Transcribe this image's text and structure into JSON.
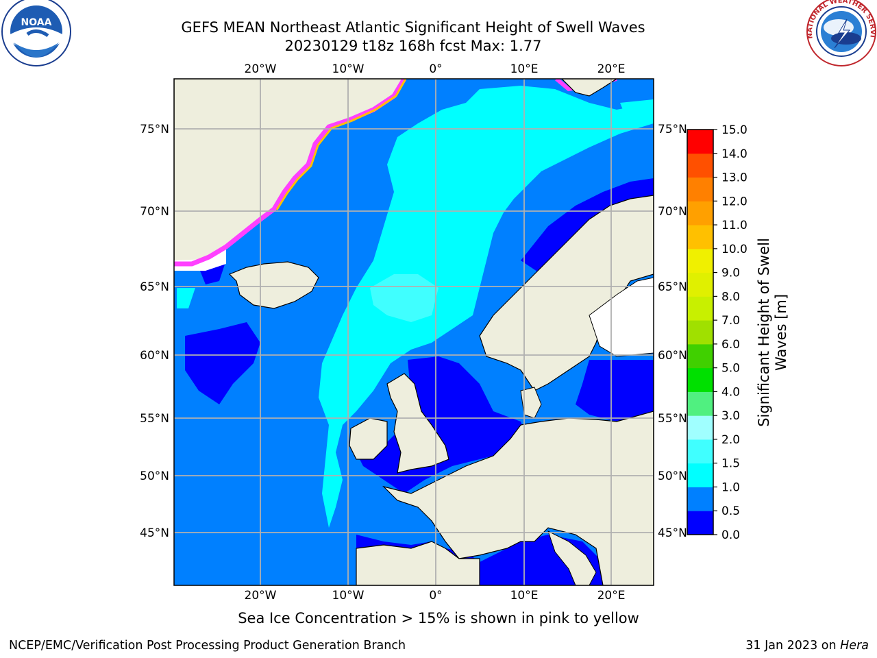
{
  "title": {
    "line1": "GEFS MEAN Northeast Atlantic Significant Height of Swell Waves",
    "line2": "20230129 t18z 168h fcst   Max: 1.77"
  },
  "axes": {
    "top_lon_ticks": [
      "20°W",
      "10°W",
      "0°",
      "10°E",
      "20°E"
    ],
    "bottom_lon_ticks": [
      "20°W",
      "10°W",
      "0°",
      "10°E",
      "20°E"
    ],
    "left_lat_ticks": [
      "75°N",
      "70°N",
      "65°N",
      "60°N",
      "55°N",
      "50°N",
      "45°N"
    ],
    "right_lat_ticks": [
      "75°N",
      "70°N",
      "65°N",
      "60°N",
      "55°N",
      "50°N",
      "45°N"
    ]
  },
  "colorbar": {
    "label_line1": "Significant Height of Swell",
    "label_line2": "Waves [m]",
    "ticks": [
      "15.0",
      "14.0",
      "13.0",
      "12.0",
      "11.0",
      "10.0",
      "9.0",
      "8.0",
      "7.0",
      "6.0",
      "5.0",
      "4.0",
      "3.0",
      "2.0",
      "1.5",
      "1.0",
      "0.5",
      "0.0"
    ],
    "bands": [
      {
        "range": "0.0-0.5",
        "color": "#0000ff"
      },
      {
        "range": "0.5-1.0",
        "color": "#0080ff"
      },
      {
        "range": "1.0-1.5",
        "color": "#00ffff"
      },
      {
        "range": "1.5-2.0",
        "color": "#40ffff"
      },
      {
        "range": "2.0-3.0",
        "color": "#a0ffff"
      },
      {
        "range": "3.0-4.0",
        "color": "#50f080"
      },
      {
        "range": "4.0-5.0",
        "color": "#00e000"
      },
      {
        "range": "5.0-6.0",
        "color": "#40d000"
      },
      {
        "range": "6.0-7.0",
        "color": "#a0e000"
      },
      {
        "range": "7.0-8.0",
        "color": "#c8f000"
      },
      {
        "range": "8.0-9.0",
        "color": "#e0f000"
      },
      {
        "range": "9.0-10.0",
        "color": "#f0f000"
      },
      {
        "range": "10.0-11.0",
        "color": "#ffc000"
      },
      {
        "range": "11.0-12.0",
        "color": "#ffa000"
      },
      {
        "range": "12.0-13.0",
        "color": "#ff8000"
      },
      {
        "range": "13.0-14.0",
        "color": "#ff5000"
      },
      {
        "range": "14.0-15.0",
        "color": "#ff0000"
      }
    ]
  },
  "colors": {
    "land": "#eeeedd",
    "ocean_low": "#0000ff",
    "ocean_mid": "#0080ff",
    "ocean_high": "#00ffff",
    "ocean_higher": "#40ffff",
    "ice_pink": "#ff40ff",
    "ice_yellow": "#ffff40",
    "grid": "#b0b0b0"
  },
  "logos": {
    "left": "noaa-logo",
    "right": "national-weather-service-logo",
    "left_text": "NOAA",
    "right_text": "NATIONAL WEATHER SERVICE"
  },
  "caption": "Sea Ice Concentration > 15% is shown in pink to yellow",
  "footer": {
    "left": "NCEP/EMC/Verification Post Processing Product Generation Branch",
    "right_date": "31 Jan 2023 on ",
    "right_host": "Hera"
  }
}
